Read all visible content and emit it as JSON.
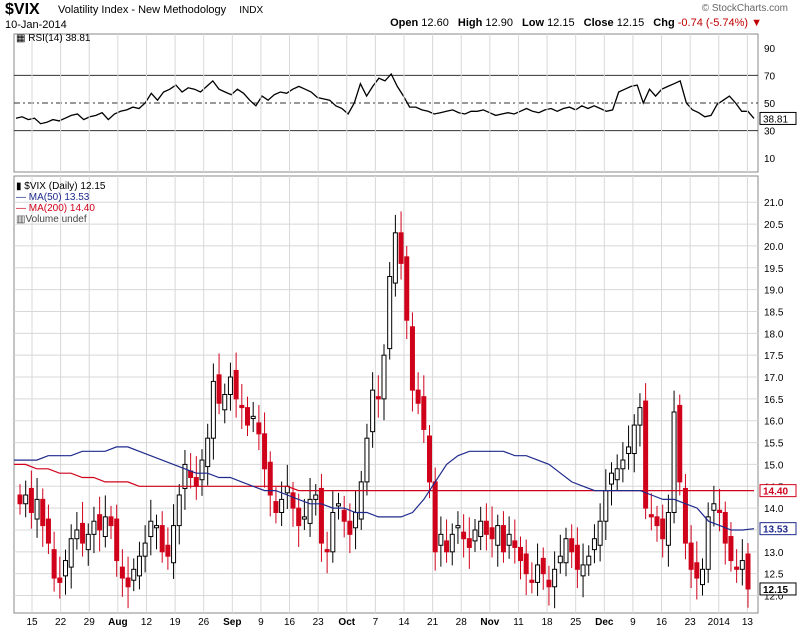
{
  "header": {
    "symbol": "$VIX",
    "name": "Volatility Index - New Methodology",
    "exchange": "INDX",
    "date": "10-Jan-2014",
    "brand": "© StockCharts.com",
    "open_label": "Open",
    "open": "12.60",
    "high_label": "High",
    "high": "12.90",
    "low_label": "Low",
    "low": "12.15",
    "close_label": "Close",
    "close": "12.15",
    "chg_label": "Chg",
    "chg": "-0.74 (-5.74%)"
  },
  "colors": {
    "up": "#000000",
    "down": "#d0021b",
    "ma50": "#1f2a8c",
    "ma200": "#d0021b",
    "grid": "#d8d8d8"
  },
  "rsi_panel": {
    "legend": "RSI(14) 38.81",
    "last_label": "38.81"
  },
  "price_panel": {
    "legend_main": "$VIX (Daily) 12.15",
    "legend_ma50": "MA(50) 13.53",
    "legend_ma200": "MA(200) 14.40",
    "legend_volume": "Volume undef",
    "tag_ma200": "14.40",
    "tag_ma50": "13.53",
    "tag_close": "12.15"
  },
  "chart_data": {
    "type": "candlestick",
    "rsi": {
      "period": 14,
      "y_ticks": [
        10,
        30,
        50,
        70,
        90
      ],
      "ylim": [
        0,
        100
      ],
      "reference_lines": [
        30,
        50,
        70
      ],
      "values": [
        39,
        40,
        38,
        39,
        35,
        36,
        38,
        37,
        39,
        41,
        42,
        38,
        40,
        41,
        43,
        38,
        42,
        44,
        45,
        47,
        46,
        50,
        57,
        52,
        58,
        60,
        63,
        58,
        61,
        60,
        58,
        62,
        66,
        60,
        58,
        56,
        60,
        57,
        52,
        48,
        55,
        52,
        56,
        58,
        57,
        60,
        62,
        60,
        58,
        54,
        53,
        52,
        48,
        46,
        42,
        50,
        64,
        55,
        62,
        68,
        66,
        71,
        62,
        55,
        47,
        47,
        45,
        44,
        42,
        43,
        44,
        45,
        43,
        42,
        44,
        44,
        45,
        43,
        41,
        42,
        43,
        42,
        44,
        46,
        44,
        43,
        45,
        46,
        44,
        46,
        47,
        45,
        48,
        46,
        48,
        46,
        44,
        45,
        58,
        60,
        62,
        63,
        50,
        60,
        55,
        60,
        62,
        64,
        66,
        50,
        45,
        43,
        40,
        41,
        49,
        52,
        55,
        50,
        44,
        44,
        38.81
      ]
    },
    "price": {
      "y_ticks": [
        12.0,
        12.5,
        13.0,
        13.5,
        14.0,
        14.5,
        15.0,
        15.5,
        16.0,
        16.5,
        17.0,
        17.5,
        18.0,
        18.5,
        19.0,
        19.5,
        20.0,
        20.5,
        21.0
      ],
      "ylim": [
        11.6,
        21.6
      ],
      "x_tick_labels": [
        "15",
        "22",
        "29",
        "Aug",
        "12",
        "19",
        "26",
        "Sep",
        "9",
        "16",
        "23",
        "Oct",
        "7",
        "14",
        "21",
        "28",
        "Nov",
        "11",
        "18",
        "25",
        "Dec",
        "9",
        "16",
        "23",
        "2014",
        "13"
      ],
      "candles_close": [
        14.1,
        14.3,
        13.9,
        14.2,
        13.6,
        13.2,
        12.4,
        12.3,
        12.8,
        13.3,
        13.5,
        13.2,
        13.4,
        13.7,
        13.5,
        13.8,
        13.6,
        12.8,
        12.4,
        12.2,
        12.6,
        12.9,
        13.2,
        13.7,
        13.6,
        13.0,
        12.9,
        13.6,
        14.3,
        15.0,
        14.7,
        14.5,
        15.1,
        15.6,
        16.9,
        16.4,
        16.6,
        17.0,
        16.5,
        16.3,
        15.9,
        16.1,
        15.7,
        14.9,
        14.3,
        13.9,
        14.2,
        14.5,
        14.0,
        13.6,
        13.8,
        14.2,
        14.3,
        13.2,
        13.0,
        13.9,
        14.1,
        13.7,
        13.4,
        13.9,
        14.6,
        15.6,
        16.7,
        16.5,
        17.5,
        19.3,
        20.3,
        19.6,
        18.3,
        16.7,
        16.4,
        15.8,
        14.6,
        13.0,
        13.4,
        13.0,
        13.4,
        13.6,
        13.3,
        13.1,
        13.5,
        13.7,
        13.4,
        13.3,
        13.6,
        13.0,
        13.4,
        13.1,
        12.8,
        12.5,
        12.3,
        12.7,
        12.5,
        12.2,
        12.6,
        12.9,
        13.3,
        13.0,
        12.6,
        12.7,
        12.9,
        13.3,
        13.7,
        14.4,
        14.8,
        14.9,
        15.1,
        15.4,
        15.9,
        16.3,
        14.0,
        13.8,
        13.6,
        13.3,
        13.9,
        16.2,
        14.6,
        13.2,
        12.6,
        12.4,
        12.6,
        13.8,
        14.1,
        13.9,
        13.2,
        12.8,
        12.6,
        12.8,
        12.15
      ],
      "ma50": [
        15.1,
        15.1,
        15.1,
        15.2,
        15.2,
        15.2,
        15.3,
        15.3,
        15.3,
        15.4,
        15.4,
        15.3,
        15.2,
        15.1,
        15.0,
        14.9,
        14.8,
        14.8,
        14.7,
        14.7,
        14.6,
        14.5,
        14.4,
        14.4,
        14.3,
        14.2,
        14.1,
        14.1,
        14.0,
        14.0,
        13.9,
        13.9,
        13.8,
        13.8,
        13.8,
        13.9,
        14.2,
        14.6,
        15.0,
        15.2,
        15.3,
        15.3,
        15.3,
        15.3,
        15.2,
        15.2,
        15.1,
        15.0,
        14.8,
        14.6,
        14.5,
        14.4,
        14.4,
        14.4,
        14.4,
        14.4,
        14.3,
        14.2,
        14.2,
        14.1,
        14.0,
        13.7,
        13.6,
        13.5,
        13.5,
        13.53
      ],
      "ma200": [
        15.0,
        15.0,
        14.9,
        14.9,
        14.8,
        14.8,
        14.7,
        14.7,
        14.6,
        14.6,
        14.6,
        14.5,
        14.5,
        14.5,
        14.5,
        14.5,
        14.5,
        14.5,
        14.5,
        14.5,
        14.5,
        14.5,
        14.5,
        14.5,
        14.5,
        14.4,
        14.4,
        14.4,
        14.4,
        14.4,
        14.4,
        14.4,
        14.4,
        14.4,
        14.4,
        14.4,
        14.4,
        14.4,
        14.4,
        14.4,
        14.4,
        14.4,
        14.4,
        14.4,
        14.4,
        14.4,
        14.4,
        14.4,
        14.4,
        14.4,
        14.4,
        14.4,
        14.4,
        14.4,
        14.4,
        14.4,
        14.4,
        14.4,
        14.4,
        14.4,
        14.4,
        14.4,
        14.4,
        14.4,
        14.4,
        14.4
      ],
      "last": {
        "close": 12.15,
        "ma50": 13.53,
        "ma200": 14.4
      }
    }
  }
}
